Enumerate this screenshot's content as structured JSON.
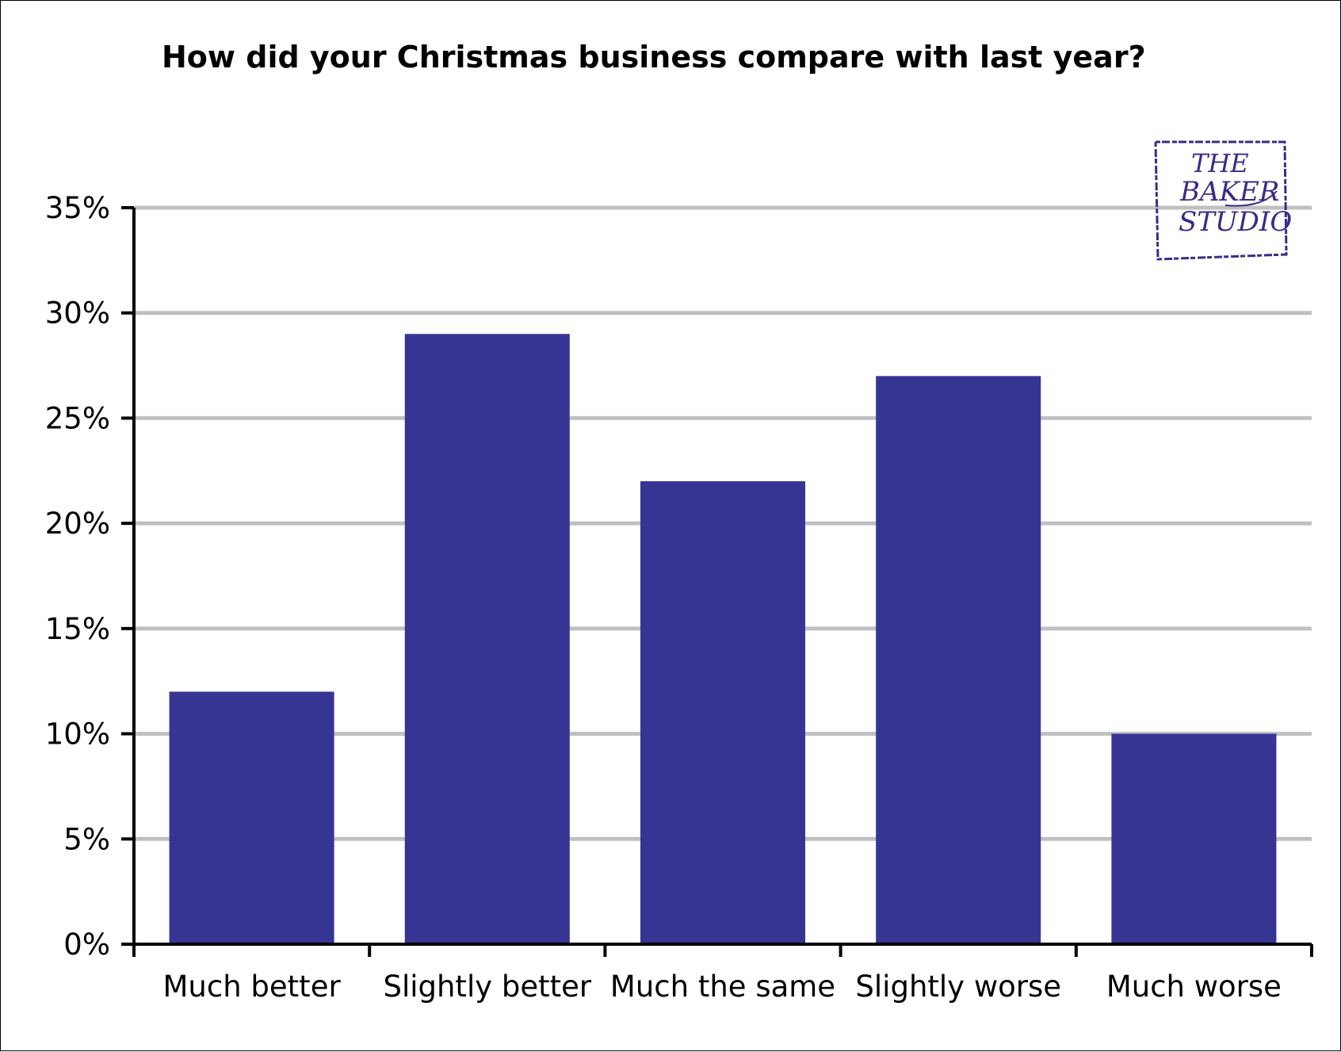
{
  "chart_data": {
    "type": "bar",
    "title": "How did your Christmas business compare with last year?",
    "categories": [
      "Much better",
      "Slightly better",
      "Much the same",
      "Slightly worse",
      "Much worse"
    ],
    "values": [
      12,
      29,
      22,
      27,
      10
    ],
    "ylim": [
      0,
      35
    ],
    "yticks": [
      "0%",
      "5%",
      "10%",
      "15%",
      "20%",
      "25%",
      "30%",
      "35%"
    ],
    "ytick_values": [
      0,
      5,
      10,
      15,
      20,
      25,
      30,
      35
    ],
    "xlabel": "",
    "ylabel": "",
    "grid": true,
    "bar_color": "#373594",
    "grid_color": "#c0c0c0"
  },
  "logo": {
    "line1": "THE",
    "line2": "BAKER",
    "line3": "STUDIO",
    "color": "#3b2b86"
  }
}
